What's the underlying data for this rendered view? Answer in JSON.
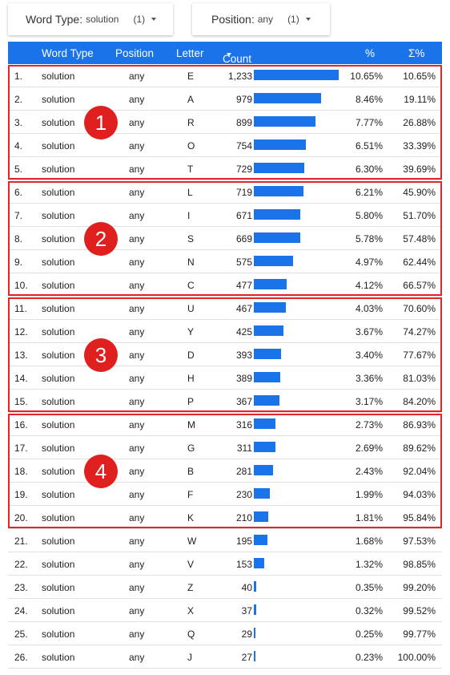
{
  "filters": {
    "word_type": {
      "label": "Word Type",
      "sep": ":",
      "value": "solution",
      "count": "(1)"
    },
    "position": {
      "label": "Position",
      "sep": ":",
      "value": "any",
      "count": "(1)"
    }
  },
  "table": {
    "headers": {
      "word_type": "Word Type",
      "position": "Position",
      "letter": "Letter",
      "count": "Count",
      "pct": "%",
      "cum": "Σ%"
    },
    "max_count": 1233,
    "bar_color": "#1a73e8",
    "rows": [
      {
        "idx": "1.",
        "word_type": "solution",
        "position": "any",
        "letter": "E",
        "count": "1,233",
        "value": 1233,
        "pct": "10.65%",
        "cum": "10.65%"
      },
      {
        "idx": "2.",
        "word_type": "solution",
        "position": "any",
        "letter": "A",
        "count": "979",
        "value": 979,
        "pct": "8.46%",
        "cum": "19.11%"
      },
      {
        "idx": "3.",
        "word_type": "solution",
        "position": "any",
        "letter": "R",
        "count": "899",
        "value": 899,
        "pct": "7.77%",
        "cum": "26.88%"
      },
      {
        "idx": "4.",
        "word_type": "solution",
        "position": "any",
        "letter": "O",
        "count": "754",
        "value": 754,
        "pct": "6.51%",
        "cum": "33.39%"
      },
      {
        "idx": "5.",
        "word_type": "solution",
        "position": "any",
        "letter": "T",
        "count": "729",
        "value": 729,
        "pct": "6.30%",
        "cum": "39.69%"
      },
      {
        "idx": "6.",
        "word_type": "solution",
        "position": "any",
        "letter": "L",
        "count": "719",
        "value": 719,
        "pct": "6.21%",
        "cum": "45.90%"
      },
      {
        "idx": "7.",
        "word_type": "solution",
        "position": "any",
        "letter": "I",
        "count": "671",
        "value": 671,
        "pct": "5.80%",
        "cum": "51.70%"
      },
      {
        "idx": "8.",
        "word_type": "solution",
        "position": "any",
        "letter": "S",
        "count": "669",
        "value": 669,
        "pct": "5.78%",
        "cum": "57.48%"
      },
      {
        "idx": "9.",
        "word_type": "solution",
        "position": "any",
        "letter": "N",
        "count": "575",
        "value": 575,
        "pct": "4.97%",
        "cum": "62.44%"
      },
      {
        "idx": "10.",
        "word_type": "solution",
        "position": "any",
        "letter": "C",
        "count": "477",
        "value": 477,
        "pct": "4.12%",
        "cum": "66.57%"
      },
      {
        "idx": "11.",
        "word_type": "solution",
        "position": "any",
        "letter": "U",
        "count": "467",
        "value": 467,
        "pct": "4.03%",
        "cum": "70.60%"
      },
      {
        "idx": "12.",
        "word_type": "solution",
        "position": "any",
        "letter": "Y",
        "count": "425",
        "value": 425,
        "pct": "3.67%",
        "cum": "74.27%"
      },
      {
        "idx": "13.",
        "word_type": "solution",
        "position": "any",
        "letter": "D",
        "count": "393",
        "value": 393,
        "pct": "3.40%",
        "cum": "77.67%"
      },
      {
        "idx": "14.",
        "word_type": "solution",
        "position": "any",
        "letter": "H",
        "count": "389",
        "value": 389,
        "pct": "3.36%",
        "cum": "81.03%"
      },
      {
        "idx": "15.",
        "word_type": "solution",
        "position": "any",
        "letter": "P",
        "count": "367",
        "value": 367,
        "pct": "3.17%",
        "cum": "84.20%"
      },
      {
        "idx": "16.",
        "word_type": "solution",
        "position": "any",
        "letter": "M",
        "count": "316",
        "value": 316,
        "pct": "2.73%",
        "cum": "86.93%"
      },
      {
        "idx": "17.",
        "word_type": "solution",
        "position": "any",
        "letter": "G",
        "count": "311",
        "value": 311,
        "pct": "2.69%",
        "cum": "89.62%"
      },
      {
        "idx": "18.",
        "word_type": "solution",
        "position": "any",
        "letter": "B",
        "count": "281",
        "value": 281,
        "pct": "2.43%",
        "cum": "92.04%"
      },
      {
        "idx": "19.",
        "word_type": "solution",
        "position": "any",
        "letter": "F",
        "count": "230",
        "value": 230,
        "pct": "1.99%",
        "cum": "94.03%"
      },
      {
        "idx": "20.",
        "word_type": "solution",
        "position": "any",
        "letter": "K",
        "count": "210",
        "value": 210,
        "pct": "1.81%",
        "cum": "95.84%"
      },
      {
        "idx": "21.",
        "word_type": "solution",
        "position": "any",
        "letter": "W",
        "count": "195",
        "value": 195,
        "pct": "1.68%",
        "cum": "97.53%"
      },
      {
        "idx": "22.",
        "word_type": "solution",
        "position": "any",
        "letter": "V",
        "count": "153",
        "value": 153,
        "pct": "1.32%",
        "cum": "98.85%"
      },
      {
        "idx": "23.",
        "word_type": "solution",
        "position": "any",
        "letter": "Z",
        "count": "40",
        "value": 40,
        "pct": "0.35%",
        "cum": "99.20%"
      },
      {
        "idx": "24.",
        "word_type": "solution",
        "position": "any",
        "letter": "X",
        "count": "37",
        "value": 37,
        "pct": "0.32%",
        "cum": "99.52%"
      },
      {
        "idx": "25.",
        "word_type": "solution",
        "position": "any",
        "letter": "Q",
        "count": "29",
        "value": 29,
        "pct": "0.25%",
        "cum": "99.77%"
      },
      {
        "idx": "26.",
        "word_type": "solution",
        "position": "any",
        "letter": "J",
        "count": "27",
        "value": 27,
        "pct": "0.23%",
        "cum": "100.00%"
      }
    ]
  },
  "annotations": {
    "color": "#e3242b",
    "groups": [
      {
        "label": "1",
        "from_row": 1,
        "to_row": 5
      },
      {
        "label": "2",
        "from_row": 6,
        "to_row": 10
      },
      {
        "label": "3",
        "from_row": 11,
        "to_row": 15
      },
      {
        "label": "4",
        "from_row": 16,
        "to_row": 20
      }
    ]
  }
}
